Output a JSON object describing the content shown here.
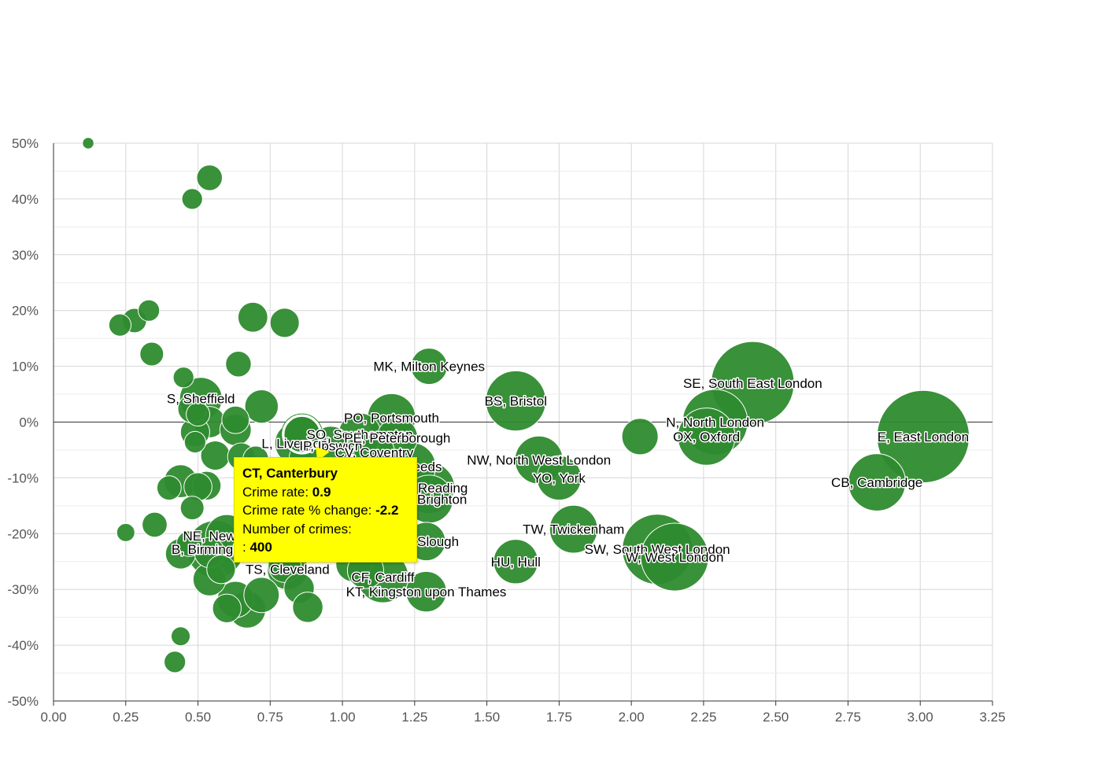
{
  "chart_data": {
    "type": "scatter",
    "title": "",
    "xlabel": "",
    "ylabel": "",
    "xlim": [
      0,
      3.25
    ],
    "ylim": [
      -50,
      50
    ],
    "xticks": [
      "0.00",
      "0.25",
      "0.50",
      "0.75",
      "1.00",
      "1.25",
      "1.50",
      "1.75",
      "2.00",
      "2.25",
      "2.50",
      "2.75",
      "3.00",
      "3.25"
    ],
    "yticks": [
      "50%",
      "40%",
      "30%",
      "20%",
      "10%",
      "0%",
      "-10%",
      "-20%",
      "-30%",
      "-40%",
      "-50%"
    ],
    "grid": true,
    "bubble_color": "#2e8b2e",
    "highlight_color": "#ffff00",
    "labeled_points": [
      {
        "label": "MK, Milton Keynes",
        "x": 1.3,
        "y": 10.0,
        "size": 400
      },
      {
        "label": "BS, Bristol",
        "x": 1.6,
        "y": 3.8,
        "size": 1100
      },
      {
        "label": "SE, South East London",
        "x": 2.42,
        "y": 7.0,
        "size": 2100
      },
      {
        "label": "N, North London",
        "x": 2.29,
        "y": 0.0,
        "size": 1300
      },
      {
        "label": "OX, Oxford",
        "x": 2.26,
        "y": -2.6,
        "size": 1000
      },
      {
        "label": "E, East London",
        "x": 3.01,
        "y": -2.6,
        "size": 2600
      },
      {
        "label": "CB, Cambridge",
        "x": 2.85,
        "y": -10.8,
        "size": 1000
      },
      {
        "label": "NW, North West London",
        "x": 1.68,
        "y": -6.8,
        "size": 700
      },
      {
        "label": "YO, York",
        "x": 1.75,
        "y": -10.0,
        "size": 600
      },
      {
        "label": "TW, Twickenham",
        "x": 1.8,
        "y": -19.2,
        "size": 700
      },
      {
        "label": "SW, South West London",
        "x": 2.09,
        "y": -22.8,
        "size": 1500
      },
      {
        "label": "W, West London",
        "x": 2.15,
        "y": -24.2,
        "size": 1400
      },
      {
        "label": "HU, Hull",
        "x": 1.6,
        "y": -25.0,
        "size": 600
      },
      {
        "label": "S, Sheffield",
        "x": 0.51,
        "y": 4.2,
        "size": 550
      },
      {
        "label": "PO, Portsmouth",
        "x": 1.17,
        "y": 0.8,
        "size": 700
      },
      {
        "label": "SO, Southampton",
        "x": 1.06,
        "y": -2.2,
        "size": 550
      },
      {
        "label": "L, Liverpool",
        "x": 0.84,
        "y": -3.8,
        "size": 550
      },
      {
        "label": "IP, Ipswich",
        "x": 0.96,
        "y": -4.2,
        "size": 450
      },
      {
        "label": "PE, Peterborough",
        "x": 1.19,
        "y": -2.8,
        "size": 500
      },
      {
        "label": "CV, Coventry",
        "x": 1.11,
        "y": -5.4,
        "size": 500
      },
      {
        "label": "LS, Leeds",
        "x": 1.24,
        "y": -8.0,
        "size": 700
      },
      {
        "label": "RG, Reading",
        "x": 1.3,
        "y": -11.8,
        "size": 800
      },
      {
        "label": "BN, Brighton",
        "x": 1.3,
        "y": -13.8,
        "size": 700
      },
      {
        "label": "SL, Slough",
        "x": 1.29,
        "y": -21.4,
        "size": 450
      },
      {
        "label": "NE, Newcastle",
        "x": 0.6,
        "y": -20.4,
        "size": 550
      },
      {
        "label": "B, Birmingham",
        "x": 0.56,
        "y": -22.8,
        "size": 1000
      },
      {
        "label": "TS, Cleveland",
        "x": 0.81,
        "y": -26.4,
        "size": 500
      },
      {
        "label": "CF, Cardiff",
        "x": 1.14,
        "y": -27.8,
        "size": 800
      },
      {
        "label": "KT, Kingston upon Thames",
        "x": 1.29,
        "y": -30.4,
        "size": 500
      }
    ],
    "other_points": [
      {
        "x": 0.12,
        "y": 50.0,
        "size": 40
      },
      {
        "x": 0.54,
        "y": 43.8,
        "size": 200
      },
      {
        "x": 0.48,
        "y": 40.0,
        "size": 130
      },
      {
        "x": 0.23,
        "y": 17.4,
        "size": 150
      },
      {
        "x": 0.28,
        "y": 18.2,
        "size": 180
      },
      {
        "x": 0.33,
        "y": 20.0,
        "size": 140
      },
      {
        "x": 0.69,
        "y": 18.8,
        "size": 270
      },
      {
        "x": 0.8,
        "y": 17.8,
        "size": 260
      },
      {
        "x": 0.34,
        "y": 12.2,
        "size": 170
      },
      {
        "x": 0.64,
        "y": 10.4,
        "size": 200
      },
      {
        "x": 0.45,
        "y": 8.0,
        "size": 130
      },
      {
        "x": 0.72,
        "y": 2.8,
        "size": 340
      },
      {
        "x": 0.48,
        "y": 2.4,
        "size": 250
      },
      {
        "x": 0.5,
        "y": 1.4,
        "size": 170
      },
      {
        "x": 0.54,
        "y": 0.0,
        "size": 300
      },
      {
        "x": 0.63,
        "y": 0.4,
        "size": 230
      },
      {
        "x": 0.63,
        "y": -1.4,
        "size": 300
      },
      {
        "x": 0.49,
        "y": -1.8,
        "size": 260
      },
      {
        "x": 0.49,
        "y": -3.6,
        "size": 140
      },
      {
        "x": 0.56,
        "y": -6.0,
        "size": 260
      },
      {
        "x": 0.65,
        "y": -6.2,
        "size": 230
      },
      {
        "x": 0.7,
        "y": -6.6,
        "size": 200
      },
      {
        "x": 0.44,
        "y": -10.6,
        "size": 330
      },
      {
        "x": 0.4,
        "y": -11.8,
        "size": 180
      },
      {
        "x": 0.5,
        "y": -11.6,
        "size": 240
      },
      {
        "x": 0.53,
        "y": -11.4,
        "size": 250
      },
      {
        "x": 0.48,
        "y": -15.4,
        "size": 170
      },
      {
        "x": 0.35,
        "y": -18.4,
        "size": 190
      },
      {
        "x": 0.25,
        "y": -19.8,
        "size": 100
      },
      {
        "x": 0.47,
        "y": -21.8,
        "size": 200
      },
      {
        "x": 0.44,
        "y": -23.6,
        "size": 280
      },
      {
        "x": 0.54,
        "y": -23.4,
        "size": 280
      },
      {
        "x": 0.58,
        "y": -26.4,
        "size": 250
      },
      {
        "x": 0.54,
        "y": -28.2,
        "size": 330
      },
      {
        "x": 0.63,
        "y": -31.8,
        "size": 400
      },
      {
        "x": 0.72,
        "y": -31.0,
        "size": 380
      },
      {
        "x": 0.6,
        "y": -33.4,
        "size": 250
      },
      {
        "x": 0.67,
        "y": -33.6,
        "size": 420
      },
      {
        "x": 0.85,
        "y": -29.8,
        "size": 280
      },
      {
        "x": 0.88,
        "y": -33.2,
        "size": 280
      },
      {
        "x": 0.8,
        "y": -25.8,
        "size": 330
      },
      {
        "x": 1.04,
        "y": -25.4,
        "size": 400
      },
      {
        "x": 1.08,
        "y": -26.6,
        "size": 400
      },
      {
        "x": 0.44,
        "y": -38.4,
        "size": 110
      },
      {
        "x": 0.42,
        "y": -43.0,
        "size": 140
      },
      {
        "x": 2.03,
        "y": -2.6,
        "size": 400
      },
      {
        "x": 0.87,
        "y": -6.4,
        "size": 300
      }
    ],
    "highlighted_point": {
      "label": "CT, Canterbury",
      "x": 0.86,
      "y": -2.2,
      "size": 400
    }
  },
  "tooltip": {
    "title": "CT, Canterbury",
    "rate_label": "Crime rate: ",
    "rate_value": "0.9",
    "change_label": "Crime rate % change: ",
    "change_value": "-2.2",
    "crimes_label": "Number of crimes:",
    "crimes_prefix": ": ",
    "crimes_value": "400"
  }
}
